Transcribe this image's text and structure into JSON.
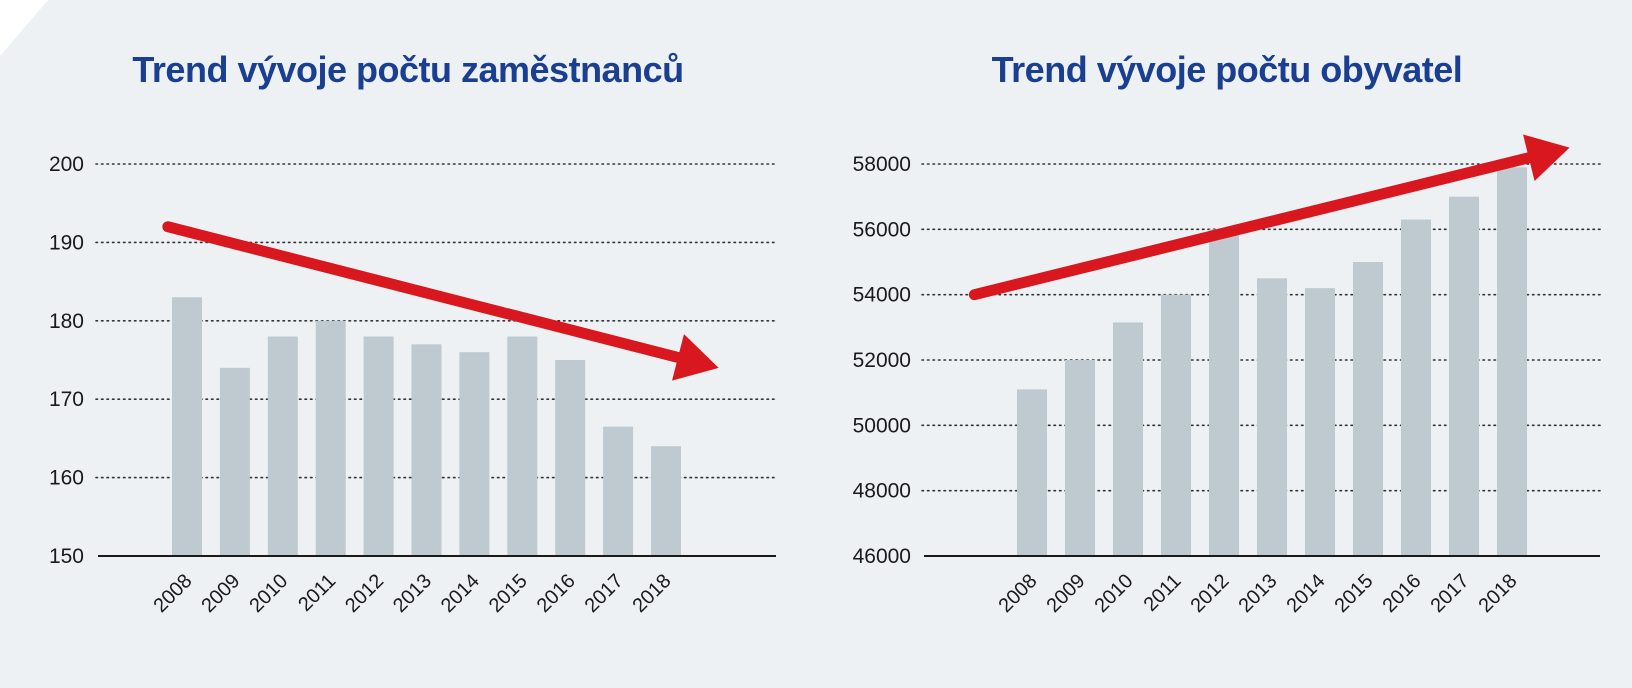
{
  "colors": {
    "background": "#eef1f3",
    "bar": "#bfc9d0",
    "arrow": "#d9171e",
    "title": "#1a3f91",
    "gridline": "#333333",
    "axis": "#1a1a1a"
  },
  "chart_data": [
    {
      "type": "bar",
      "title": "Trend vývoje počtu zaměstnanců",
      "xlabel": "",
      "ylabel": "",
      "categories": [
        "2008",
        "2009",
        "2010",
        "2011",
        "2012",
        "2013",
        "2014",
        "2015",
        "2016",
        "2017",
        "2018"
      ],
      "values": [
        183,
        174,
        178,
        180,
        178,
        177,
        176,
        178,
        175,
        166.5,
        164
      ],
      "ylim": [
        150,
        200
      ],
      "yticks": [
        150,
        160,
        170,
        180,
        190,
        200
      ],
      "grid": "dotted horizontal",
      "legend": "none",
      "trend_arrow": {
        "direction": "down",
        "from": [
          -0.4,
          192
        ],
        "to": [
          11.1,
          174
        ]
      }
    },
    {
      "type": "bar",
      "title": "Trend vývoje počtu obyvatel",
      "xlabel": "",
      "ylabel": "",
      "categories": [
        "2008",
        "2009",
        "2010",
        "2011",
        "2012",
        "2013",
        "2014",
        "2015",
        "2016",
        "2017",
        "2018"
      ],
      "values": [
        51100,
        52000,
        53150,
        54000,
        56000,
        54500,
        54200,
        55000,
        56300,
        57000,
        57900
      ],
      "ylim": [
        46000,
        58000
      ],
      "yticks": [
        46000,
        48000,
        50000,
        52000,
        54000,
        56000,
        58000
      ],
      "grid": "dotted horizontal",
      "legend": "none",
      "trend_arrow": {
        "direction": "up",
        "from": [
          -1.2,
          54000
        ],
        "to": [
          11.2,
          58500
        ]
      }
    }
  ]
}
